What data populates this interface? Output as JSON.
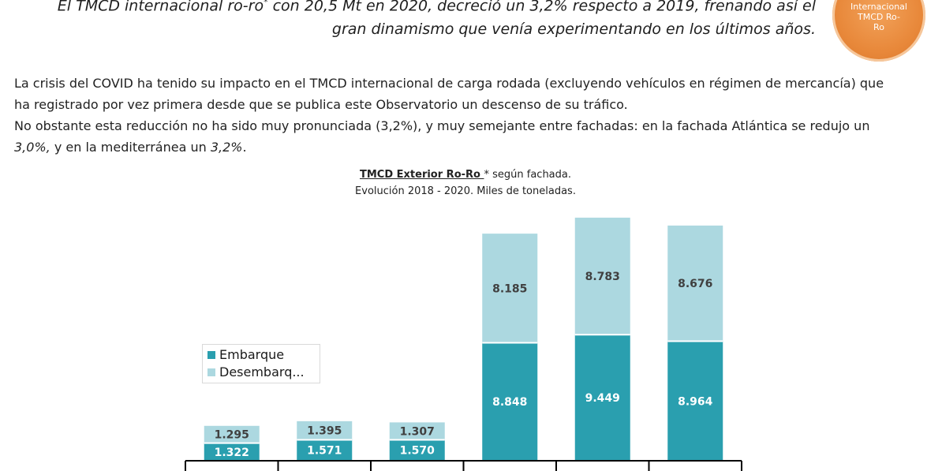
{
  "heading": {
    "line1_pre": "El TMCD internacional ro-ro",
    "line1_sup": "*",
    "line1_post": " con 20,5 Mt en 2020, decreció un 3,2% respecto a 2019, frenando así el",
    "line2": "gran dinamismo que venía experimentando en los últimos años."
  },
  "badge": {
    "line1": "Internacional",
    "line2": "TMCD Ro-",
    "line3": "Ro",
    "color": "#e8883a"
  },
  "paragraph1": "La crisis del COVID ha tenido su impacto en el TMCD internacional de carga rodada (excluyendo vehículos en régimen de mercancía) que ha registrado por vez primera desde que se publica este Observatorio un descenso de su tráfico.",
  "paragraph2": {
    "text_a": "No obstante esta reducción no ha sido muy pronunciada (3,2%), y muy semejante entre fachadas: en la fachada Atlántica se redujo un ",
    "em_a": "3,0%,",
    "text_b": " y en la  mediterránea un ",
    "em_b": "3,2%",
    "text_c": "."
  },
  "chart_data": {
    "type": "bar",
    "stacked": true,
    "title_underlined": "TMCD Exterior Ro-Ro ",
    "title_rest": "* según fachada.",
    "subtitle": "Evolución 2018 - 2020. Miles de toneladas.",
    "categories": [
      "",
      "",
      "",
      "",
      "",
      ""
    ],
    "series": [
      {
        "name": "Embarque",
        "color": "#2a9faf",
        "values": [
          1322,
          1571,
          1570,
          8848,
          9449,
          8964
        ]
      },
      {
        "name": "Desembarq...",
        "color": "#acd8e0",
        "values": [
          1295,
          1395,
          1307,
          8185,
          8783,
          8676
        ]
      }
    ],
    "labels": {
      "Embarque": [
        "1.322",
        "1.571",
        "1.570",
        "8.848",
        "9.449",
        "8.964"
      ],
      "Desembarq...": [
        "1.295",
        "1.395",
        "1.307",
        "8.185",
        "8.783",
        "8.676"
      ]
    },
    "legend_position": "left",
    "grid": false
  }
}
